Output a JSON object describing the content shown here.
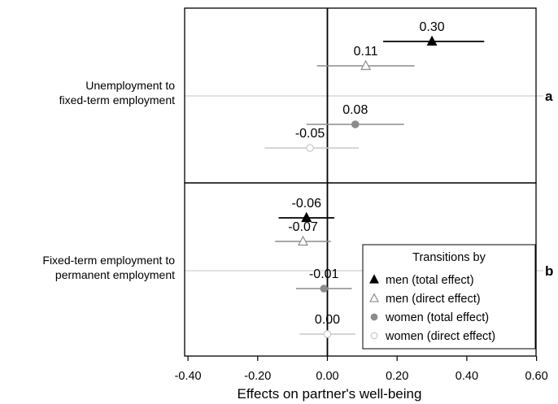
{
  "chart_data": {
    "type": "dot-whisker",
    "xlabel": "Effects on partner's well-being",
    "xlim": [
      -0.42,
      0.62
    ],
    "x_ticks": [
      -0.4,
      -0.2,
      0.0,
      0.2,
      0.4,
      0.6
    ],
    "x_tick_labels": [
      "-0.40",
      "-0.20",
      "0.00",
      "0.20",
      "0.40",
      "0.60"
    ],
    "reference_line": 0.0,
    "panels": [
      {
        "label": "Unemployment to fixed-term employment",
        "label_lines": [
          "Unemployment to",
          "fixed-term employment"
        ],
        "panel_letter": "a",
        "points": [
          {
            "series": "men_total",
            "estimate": 0.3,
            "ci": [
              0.16,
              0.45
            ],
            "value_label": "0.30"
          },
          {
            "series": "men_direct",
            "estimate": 0.11,
            "ci": [
              -0.03,
              0.25
            ],
            "value_label": "0.11"
          },
          {
            "series": "women_total",
            "estimate": 0.08,
            "ci": [
              -0.06,
              0.22
            ],
            "value_label": "0.08"
          },
          {
            "series": "women_direct",
            "estimate": -0.05,
            "ci": [
              -0.18,
              0.09
            ],
            "value_label": "-0.05"
          }
        ]
      },
      {
        "label": "Fixed-term employment to permanent employment",
        "label_lines": [
          "Fixed-term employment to",
          "permanent employment"
        ],
        "panel_letter": "b",
        "points": [
          {
            "series": "men_total",
            "estimate": -0.06,
            "ci": [
              -0.14,
              0.02
            ],
            "value_label": "-0.06"
          },
          {
            "series": "men_direct",
            "estimate": -0.07,
            "ci": [
              -0.15,
              0.01
            ],
            "value_label": "-0.07"
          },
          {
            "series": "women_total",
            "estimate": -0.01,
            "ci": [
              -0.09,
              0.07
            ],
            "value_label": "-0.01"
          },
          {
            "series": "women_direct",
            "estimate": 0.0,
            "ci": [
              -0.08,
              0.08
            ],
            "value_label": "0.00"
          }
        ]
      }
    ],
    "legend": {
      "title": "Transitions by",
      "placement": "bottom-right",
      "entries": [
        {
          "series": "men_total",
          "label": "men (total effect)",
          "marker": "triangle",
          "filled": true,
          "color": "#000000"
        },
        {
          "series": "men_direct",
          "label": "men (direct effect)",
          "marker": "triangle",
          "filled": false,
          "color": "#8c8c8c"
        },
        {
          "series": "women_total",
          "label": "women (total effect)",
          "marker": "circle",
          "filled": true,
          "color": "#8c8c8c"
        },
        {
          "series": "women_direct",
          "label": "women (direct effect)",
          "marker": "circle",
          "filled": false,
          "color": "#c8c8c8"
        }
      ]
    },
    "colors": {
      "men_total": "#000000",
      "men_direct": "#8c8c8c",
      "women_total": "#8c8c8c",
      "women_direct": "#c8c8c8",
      "category_line": "#d0d0d0",
      "frame": "#000000"
    }
  }
}
